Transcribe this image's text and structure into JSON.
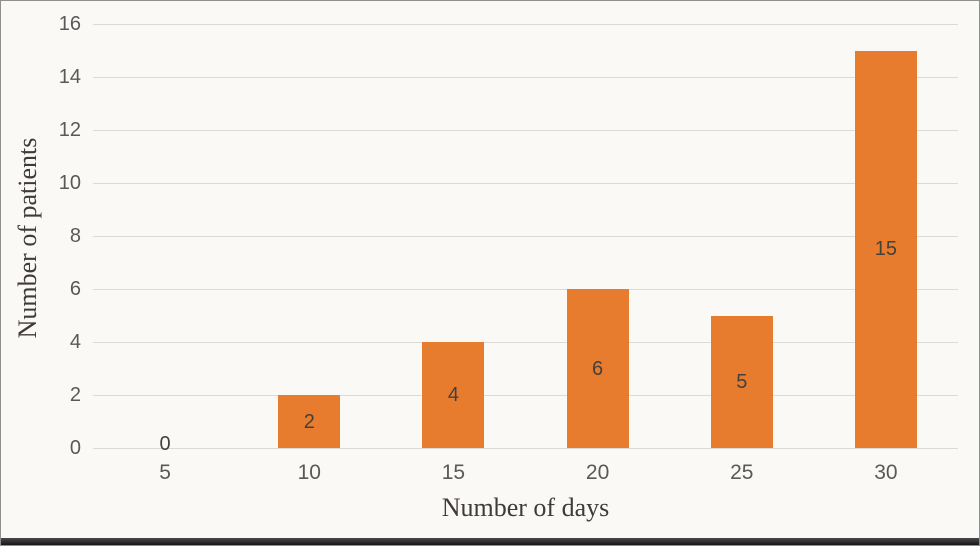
{
  "chart_data": {
    "type": "bar",
    "title": "",
    "xlabel": "Number of days",
    "ylabel": "Number of patients",
    "categories": [
      "5",
      "10",
      "15",
      "20",
      "25",
      "30"
    ],
    "values": [
      0,
      2,
      4,
      6,
      5,
      15
    ],
    "data_labels": [
      "0",
      "2",
      "4",
      "6",
      "5",
      "15"
    ],
    "data_label_position": "inside-center",
    "yticks": [
      0,
      2,
      4,
      6,
      8,
      10,
      12,
      14,
      16
    ],
    "ylim": [
      0,
      16
    ],
    "grid": "horizontal",
    "legend": "none",
    "colors": {
      "bar": "#e87c2e",
      "grid": "#dcdad7",
      "tick_text": "#595959",
      "data_label_text": "#44403c",
      "axis_title_text": "#3f3b38",
      "background": "#fbf9f6",
      "bottom_bar": "#1e1e1e",
      "border": "#8f8f8f"
    }
  }
}
